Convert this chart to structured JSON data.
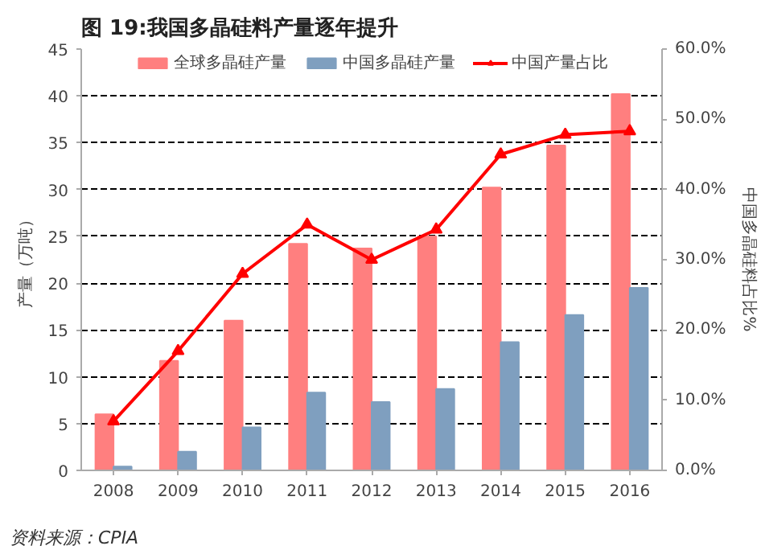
{
  "chart_data": {
    "type": "bar",
    "title": "图 19:我国多晶硅料产量逐年提升",
    "ylabel": "产量（万吨）",
    "y2label": "中国多晶硅料占比%",
    "categories": [
      "2008",
      "2009",
      "2010",
      "2011",
      "2012",
      "2013",
      "2014",
      "2015",
      "2016"
    ],
    "series": [
      {
        "name": "全球多晶硅产量",
        "color": "#ff7f7f",
        "values": [
          6,
          11.7,
          16,
          24.2,
          23.7,
          25,
          30.2,
          34.7,
          40.2
        ]
      },
      {
        "name": "中国多晶硅产量",
        "color": "#7f9fbf",
        "values": [
          0.4,
          2,
          4.6,
          8.3,
          7.3,
          8.7,
          13.7,
          16.6,
          19.5
        ]
      },
      {
        "name": "中国产量占比",
        "type": "line",
        "axis": "y2",
        "color": "#ff0000",
        "marker": "triangle",
        "values": [
          7,
          17,
          28,
          35,
          30,
          34.3,
          45,
          47.8,
          48.3
        ]
      }
    ],
    "ylim": [
      0,
      45
    ],
    "yticks": [
      0,
      5,
      10,
      15,
      20,
      25,
      30,
      35,
      40,
      45
    ],
    "y2lim": [
      0,
      60
    ],
    "y2ticks": [
      {
        "value": 0,
        "label": "0.0%"
      },
      {
        "value": 10,
        "label": "10.0%"
      },
      {
        "value": 20,
        "label": "20.0%"
      },
      {
        "value": 30,
        "label": "30.0%"
      },
      {
        "value": 40,
        "label": "40.0%"
      },
      {
        "value": 50,
        "label": "50.0%"
      },
      {
        "value": 60,
        "label": "60.0%"
      }
    ],
    "grid": "y",
    "legend": "top",
    "annotations": [
      "资料来源：CPIA"
    ]
  }
}
